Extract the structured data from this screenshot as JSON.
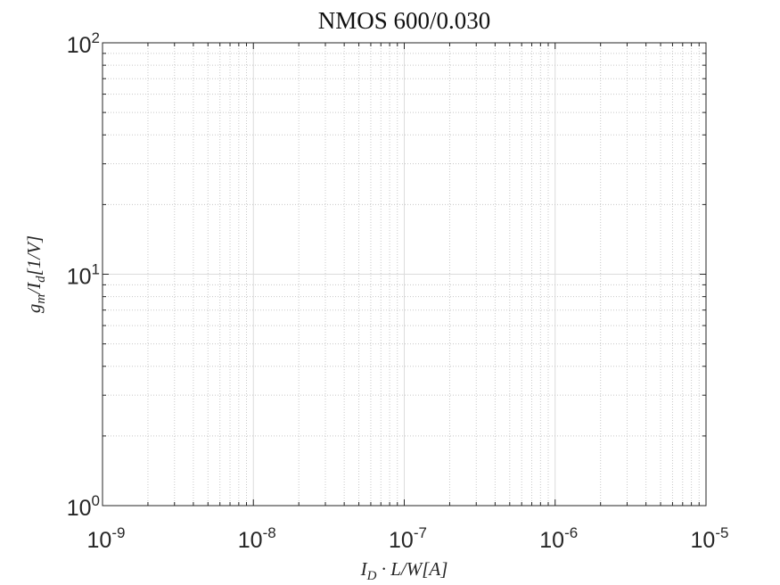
{
  "chart_data": {
    "type": "line",
    "title": "NMOS 600/0.030",
    "xlabel": "I_D · L/W[A]",
    "ylabel": "g_m/I_d[1/V]",
    "xscale": "log",
    "yscale": "log",
    "xlim": [
      1e-09,
      1e-05
    ],
    "ylim": [
      1,
      100
    ],
    "x_ticks": [
      {
        "value": 1e-09,
        "base": "10",
        "exp": "-9"
      },
      {
        "value": 1e-08,
        "base": "10",
        "exp": "-8"
      },
      {
        "value": 1e-07,
        "base": "10",
        "exp": "-7"
      },
      {
        "value": 1e-06,
        "base": "10",
        "exp": "-6"
      },
      {
        "value": 1e-05,
        "base": "10",
        "exp": "-5"
      }
    ],
    "y_ticks": [
      {
        "value": 1,
        "base": "10",
        "exp": "0"
      },
      {
        "value": 10,
        "base": "10",
        "exp": "1"
      },
      {
        "value": 100,
        "base": "10",
        "exp": "2"
      }
    ],
    "grid": true,
    "minor_grid": true,
    "series": []
  }
}
